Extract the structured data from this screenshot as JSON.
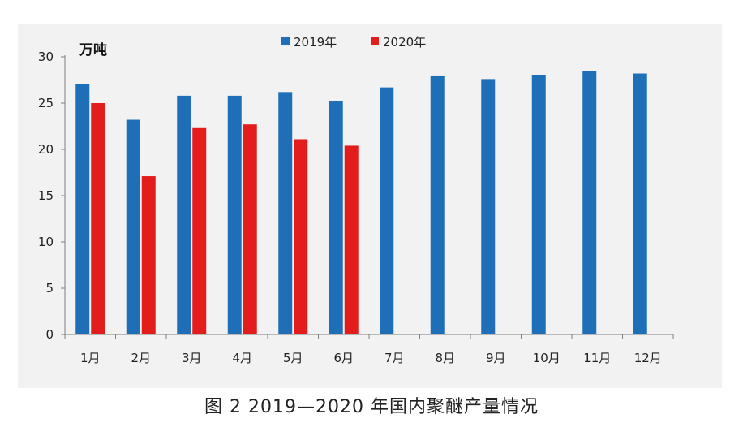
{
  "caption": "图 2  2019—2020 年国内聚醚产量情况",
  "chart_data": {
    "type": "bar",
    "unit_label": "万吨",
    "categories": [
      "1月",
      "2月",
      "3月",
      "4月",
      "5月",
      "6月",
      "7月",
      "8月",
      "9月",
      "10月",
      "11月",
      "12月"
    ],
    "series": [
      {
        "name": "2019年",
        "color": "#1f6fb8",
        "values": [
          27.1,
          23.2,
          25.8,
          25.8,
          26.2,
          25.2,
          26.7,
          27.9,
          27.6,
          28.0,
          28.5,
          28.2
        ]
      },
      {
        "name": "2020年",
        "color": "#e31c1c",
        "values": [
          25.0,
          17.1,
          22.3,
          22.7,
          21.1,
          20.4,
          null,
          null,
          null,
          null,
          null,
          null
        ]
      }
    ],
    "ylim": [
      0,
      30
    ],
    "yticks": [
      "0",
      "5",
      "10",
      "15",
      "20",
      "25",
      "30"
    ],
    "legend_position": "top-center",
    "grid": false
  }
}
